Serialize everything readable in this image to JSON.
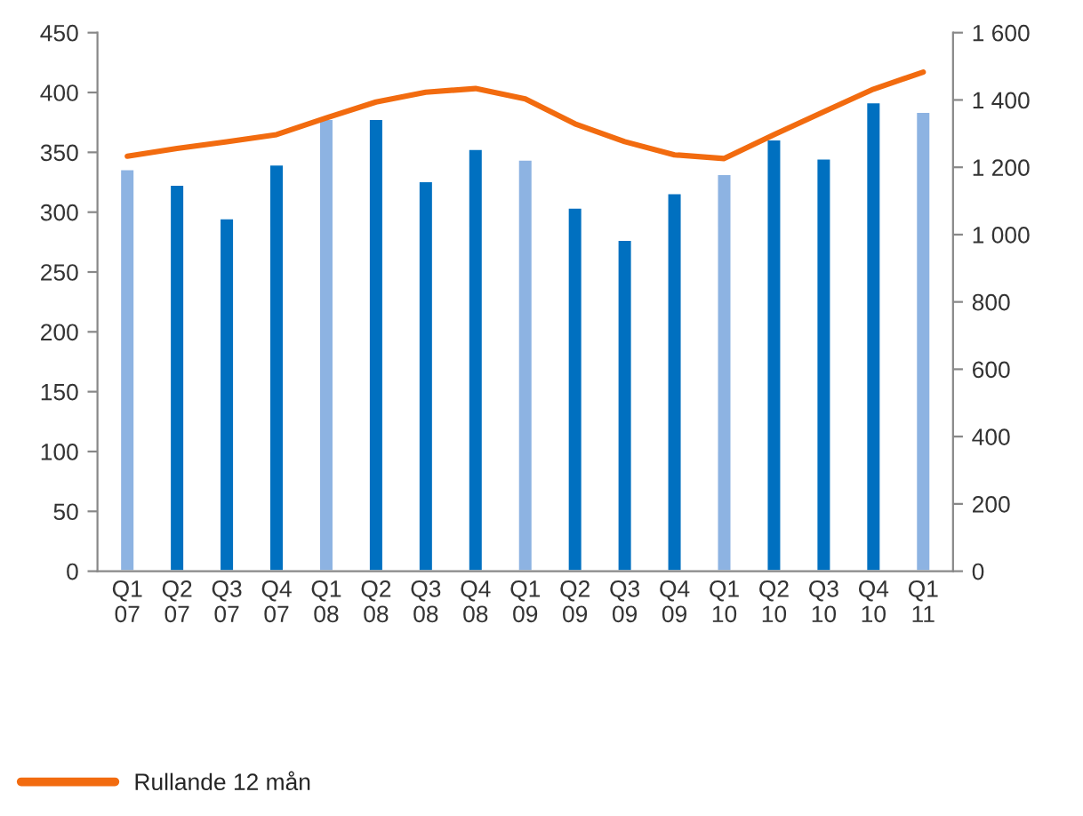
{
  "chart_data": {
    "type": "bar",
    "categories": [
      "Q1\n07",
      "Q2\n07",
      "Q3\n07",
      "Q4\n07",
      "Q1\n08",
      "Q2\n08",
      "Q3\n08",
      "Q4\n08",
      "Q1\n09",
      "Q2\n09",
      "Q3\n09",
      "Q4\n09",
      "Q1\n10",
      "Q2\n10",
      "Q3\n10",
      "Q4\n10",
      "Q1\n11"
    ],
    "series": [
      {
        "colors": [
          "#8db3e2",
          "#0070c0",
          "#0070c0",
          "#0070c0",
          "#8db3e2",
          "#0070c0",
          "#0070c0",
          "#0070c0",
          "#8db3e2",
          "#0070c0",
          "#0070c0",
          "#0070c0",
          "#8db3e2",
          "#0070c0",
          "#0070c0",
          "#0070c0",
          "#8db3e2"
        ],
        "values": [
          336,
          323,
          295,
          340,
          378,
          378,
          326,
          353,
          344,
          304,
          277,
          316,
          332,
          361,
          345,
          392,
          384
        ]
      },
      {
        "type": "line",
        "name": "Rullande 12 mån",
        "color": "#f26b0f",
        "axis": "y2",
        "values": [
          1233,
          1256,
          1276,
          1297,
          1347,
          1394,
          1423,
          1434,
          1403,
          1329,
          1276,
          1237,
          1226,
          1297,
          1365,
          1432,
          1483
        ]
      }
    ],
    "ylim": [
      0,
      450
    ],
    "yticks": [
      0,
      50,
      100,
      150,
      200,
      250,
      300,
      350,
      400,
      450
    ],
    "y2lim": [
      0,
      1600
    ],
    "y2ticks": [
      0,
      {
        "value": 200,
        "label": "200"
      },
      {
        "value": 400,
        "label": "400"
      },
      {
        "value": 600,
        "label": "600"
      },
      {
        "value": 800,
        "label": "800"
      },
      {
        "value": 1000,
        "label": "1 000"
      },
      {
        "value": 1200,
        "label": "1 200"
      },
      {
        "value": 1400,
        "label": "1 400"
      },
      {
        "value": 1600,
        "label": "1 600"
      }
    ],
    "grid": false,
    "legend": "bottom left",
    "line_style": "solid",
    "marker": "none"
  }
}
